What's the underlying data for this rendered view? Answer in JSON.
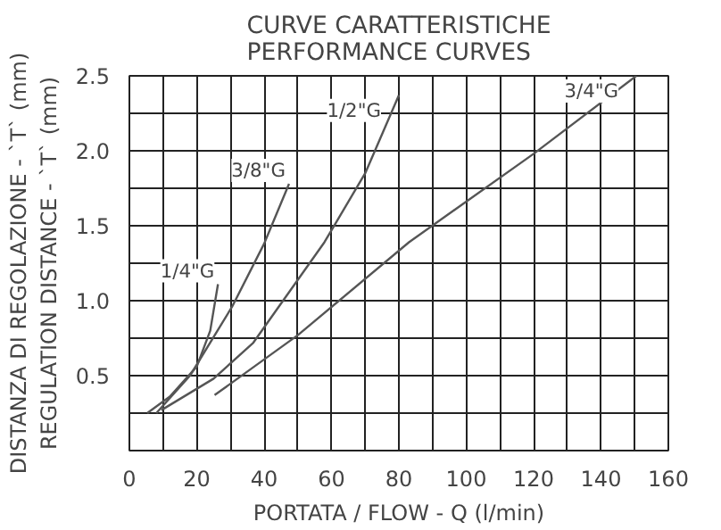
{
  "chart_data": {
    "type": "line",
    "title": "CURVE CARATTERISTICHE\nPERFORMANCE CURVES",
    "xlabel": "PORTATA / FLOW - Q (l/min)",
    "ylabel": "DISTANZA DI REGOLAZIONE - `T` (mm)\nREGULATION DISTANCE - `T` (mm)",
    "series": [
      {
        "name": "1/4\"G",
        "color": "#555555",
        "x": [
          5.3,
          12,
          20,
          24,
          26.3
        ],
        "values": [
          0.25,
          0.36,
          0.56,
          0.8,
          1.11
        ]
      },
      {
        "name": "3/8\"G",
        "color": "#555555",
        "x": [
          8,
          18,
          30.5,
          40,
          47.4
        ],
        "values": [
          0.25,
          0.5,
          0.96,
          1.38,
          1.78
        ]
      },
      {
        "name": "1/2\"G",
        "color": "#555555",
        "x": [
          9.5,
          25,
          36.8,
          57.9,
          70,
          80
        ],
        "values": [
          0.27,
          0.48,
          0.72,
          1.39,
          1.85,
          2.37
        ]
      },
      {
        "name": "3/4\"G",
        "color": "#555555",
        "x": [
          25.3,
          50,
          83,
          120,
          150.5
        ],
        "values": [
          0.37,
          0.77,
          1.39,
          1.98,
          2.5
        ]
      }
    ],
    "xlim": [
      0,
      160
    ],
    "ylim": [
      0,
      2.5
    ],
    "xticks": [
      0,
      {
        "value": 10,
        "label": null
      },
      20,
      {
        "value": 30,
        "label": null
      },
      40,
      {
        "value": 50,
        "label": null
      },
      60,
      {
        "value": 70,
        "label": null
      },
      80,
      {
        "value": 90,
        "label": null
      },
      100,
      {
        "value": 110,
        "label": null
      },
      120,
      {
        "value": 130,
        "label": null
      },
      140,
      {
        "value": 150,
        "label": null
      },
      160
    ],
    "yticks": [
      {
        "value": 0.25,
        "label": null
      },
      0.5,
      {
        "value": 0.75,
        "label": null
      },
      {
        "value": 1,
        "label": "1.0"
      },
      {
        "value": 1.25,
        "label": null
      },
      1.5,
      {
        "value": 1.75,
        "label": null
      },
      {
        "value": 2,
        "label": "2.0"
      },
      {
        "value": 2.25,
        "label": null
      },
      2.5
    ],
    "grid": true,
    "marker": "none",
    "line_style": "solid"
  }
}
